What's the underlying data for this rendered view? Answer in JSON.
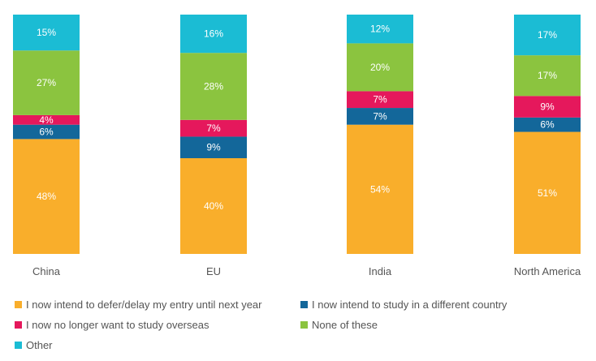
{
  "colors": {
    "defer": "#F9AE2B",
    "different_country": "#13679A",
    "no_longer": "#E5185C",
    "none": "#8BC43F",
    "other": "#1BBCD4",
    "label_text": "#ffffff",
    "category_text": "#555555"
  },
  "chart_data": {
    "type": "bar",
    "stacked": true,
    "categories": [
      "China",
      "EU",
      "India",
      "North America"
    ],
    "ylim": [
      0,
      100
    ],
    "series": [
      {
        "key": "defer",
        "name": "I now intend to defer/delay my entry until next year",
        "values": [
          48,
          40,
          54,
          51
        ],
        "labels": [
          "48%",
          "40%",
          "54%",
          "51%"
        ]
      },
      {
        "key": "different_country",
        "name": "I now intend to study in a different country",
        "values": [
          6,
          9,
          7,
          6
        ],
        "labels": [
          "6%",
          "9%",
          "7%",
          "6%"
        ]
      },
      {
        "key": "no_longer",
        "name": "I now no longer want to study overseas",
        "values": [
          4,
          7,
          7,
          9
        ],
        "labels": [
          "4%",
          "7%",
          "7%",
          "9%"
        ]
      },
      {
        "key": "none",
        "name": "None of these",
        "values": [
          27,
          28,
          20,
          17
        ],
        "labels": [
          "27%",
          "28%",
          "20%",
          "17%"
        ]
      },
      {
        "key": "other",
        "name": "Other",
        "values": [
          15,
          16,
          12,
          17
        ],
        "labels": [
          "15%",
          "16%",
          "12%",
          "17%"
        ]
      }
    ],
    "legend_position": "bottom",
    "grid": false
  },
  "legend": [
    {
      "key": "defer",
      "label": "I now intend to defer/delay my entry until next year"
    },
    {
      "key": "different_country",
      "label": "I now intend to study in a different country"
    },
    {
      "key": "no_longer",
      "label": "I now no longer want to study overseas"
    },
    {
      "key": "none",
      "label": "None of these"
    },
    {
      "key": "other",
      "label": "Other"
    }
  ]
}
